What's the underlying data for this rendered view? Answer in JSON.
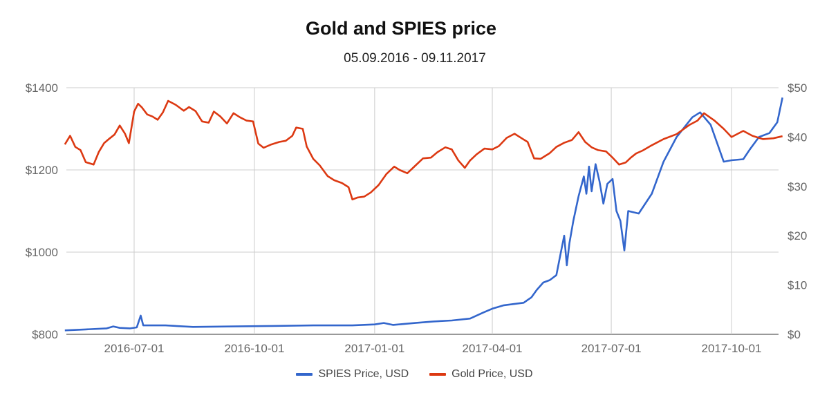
{
  "chart_data": {
    "type": "line",
    "title": "Gold and SPIES price",
    "subtitle": "05.09.2016 - 09.11.2017",
    "xlabel": "",
    "ylabel_left": "",
    "ylabel_right": "",
    "x_ticks": [
      "2016-07-01",
      "2016-10-01",
      "2017-01-01",
      "2017-04-01",
      "2017-07-01",
      "2017-10-01"
    ],
    "y_left_ticks": [
      "$800",
      "$1000",
      "$1200",
      "$1400"
    ],
    "y_left_lim": [
      800,
      1400
    ],
    "y_right_ticks": [
      "$0",
      "$10",
      "$20",
      "$30",
      "$40",
      "$50"
    ],
    "y_right_lim": [
      0,
      50
    ],
    "grid": true,
    "legend_position": "bottom",
    "series": [
      {
        "name": "SPIES Price, USD",
        "axis": "right",
        "color": "#3366cc",
        "points": [
          [
            "2016-05-09",
            0.8
          ],
          [
            "2016-05-25",
            1.0
          ],
          [
            "2016-06-10",
            1.2
          ],
          [
            "2016-06-15",
            1.6
          ],
          [
            "2016-06-20",
            1.3
          ],
          [
            "2016-06-28",
            1.2
          ],
          [
            "2016-07-03",
            1.4
          ],
          [
            "2016-07-06",
            3.8
          ],
          [
            "2016-07-08",
            1.8
          ],
          [
            "2016-07-25",
            1.8
          ],
          [
            "2016-08-15",
            1.5
          ],
          [
            "2016-09-15",
            1.6
          ],
          [
            "2016-10-15",
            1.7
          ],
          [
            "2016-11-15",
            1.8
          ],
          [
            "2016-12-15",
            1.8
          ],
          [
            "2017-01-01",
            2.0
          ],
          [
            "2017-01-08",
            2.3
          ],
          [
            "2017-01-15",
            1.9
          ],
          [
            "2017-02-01",
            2.3
          ],
          [
            "2017-02-15",
            2.6
          ],
          [
            "2017-03-01",
            2.8
          ],
          [
            "2017-03-15",
            3.2
          ],
          [
            "2017-03-25",
            4.4
          ],
          [
            "2017-04-01",
            5.2
          ],
          [
            "2017-04-10",
            5.9
          ],
          [
            "2017-04-25",
            6.4
          ],
          [
            "2017-05-01",
            7.5
          ],
          [
            "2017-05-05",
            9.0
          ],
          [
            "2017-05-10",
            10.5
          ],
          [
            "2017-05-15",
            11.0
          ],
          [
            "2017-05-20",
            12.0
          ],
          [
            "2017-05-23",
            16.0
          ],
          [
            "2017-05-26",
            20.0
          ],
          [
            "2017-05-28",
            14.0
          ],
          [
            "2017-05-30",
            18.5
          ],
          [
            "2017-06-02",
            23.0
          ],
          [
            "2017-06-06",
            28.0
          ],
          [
            "2017-06-10",
            32.0
          ],
          [
            "2017-06-12",
            28.5
          ],
          [
            "2017-06-14",
            34.0
          ],
          [
            "2017-06-16",
            29.0
          ],
          [
            "2017-06-19",
            34.5
          ],
          [
            "2017-06-22",
            31.0
          ],
          [
            "2017-06-25",
            26.5
          ],
          [
            "2017-06-28",
            30.5
          ],
          [
            "2017-07-02",
            31.5
          ],
          [
            "2017-07-05",
            25.0
          ],
          [
            "2017-07-08",
            23.0
          ],
          [
            "2017-07-11",
            17.0
          ],
          [
            "2017-07-14",
            25.0
          ],
          [
            "2017-07-22",
            24.5
          ],
          [
            "2017-08-01",
            28.5
          ],
          [
            "2017-08-10",
            35.0
          ],
          [
            "2017-08-20",
            40.0
          ],
          [
            "2017-09-01",
            44.0
          ],
          [
            "2017-09-07",
            45.0
          ],
          [
            "2017-09-15",
            42.5
          ],
          [
            "2017-09-25",
            35.0
          ],
          [
            "2017-10-01",
            35.3
          ],
          [
            "2017-10-10",
            35.5
          ],
          [
            "2017-10-15",
            37.5
          ],
          [
            "2017-10-22",
            40.0
          ],
          [
            "2017-10-30",
            40.8
          ],
          [
            "2017-11-05",
            43.0
          ],
          [
            "2017-11-09",
            48.0
          ]
        ]
      },
      {
        "name": "Gold Price, USD",
        "axis": "left",
        "color": "#dc3912",
        "points": [
          [
            "2016-05-09",
            1262
          ],
          [
            "2016-05-13",
            1283
          ],
          [
            "2016-05-17",
            1256
          ],
          [
            "2016-05-21",
            1248
          ],
          [
            "2016-05-25",
            1219
          ],
          [
            "2016-05-31",
            1213
          ],
          [
            "2016-06-04",
            1244
          ],
          [
            "2016-06-08",
            1265
          ],
          [
            "2016-06-12",
            1276
          ],
          [
            "2016-06-16",
            1286
          ],
          [
            "2016-06-20",
            1308
          ],
          [
            "2016-06-24",
            1288
          ],
          [
            "2016-06-27",
            1265
          ],
          [
            "2016-07-01",
            1342
          ],
          [
            "2016-07-04",
            1361
          ],
          [
            "2016-07-07",
            1352
          ],
          [
            "2016-07-11",
            1335
          ],
          [
            "2016-07-15",
            1330
          ],
          [
            "2016-07-19",
            1322
          ],
          [
            "2016-07-23",
            1340
          ],
          [
            "2016-07-27",
            1368
          ],
          [
            "2016-08-02",
            1358
          ],
          [
            "2016-08-08",
            1344
          ],
          [
            "2016-08-12",
            1353
          ],
          [
            "2016-08-17",
            1343
          ],
          [
            "2016-08-22",
            1318
          ],
          [
            "2016-08-27",
            1315
          ],
          [
            "2016-08-31",
            1342
          ],
          [
            "2016-09-05",
            1330
          ],
          [
            "2016-09-10",
            1313
          ],
          [
            "2016-09-15",
            1338
          ],
          [
            "2016-09-20",
            1328
          ],
          [
            "2016-09-25",
            1320
          ],
          [
            "2016-09-30",
            1318
          ],
          [
            "2016-10-04",
            1264
          ],
          [
            "2016-10-08",
            1254
          ],
          [
            "2016-10-14",
            1262
          ],
          [
            "2016-10-20",
            1268
          ],
          [
            "2016-10-25",
            1271
          ],
          [
            "2016-10-30",
            1283
          ],
          [
            "2016-11-02",
            1303
          ],
          [
            "2016-11-07",
            1300
          ],
          [
            "2016-11-10",
            1257
          ],
          [
            "2016-11-15",
            1227
          ],
          [
            "2016-11-20",
            1211
          ],
          [
            "2016-11-26",
            1185
          ],
          [
            "2016-12-01",
            1175
          ],
          [
            "2016-12-07",
            1168
          ],
          [
            "2016-12-12",
            1158
          ],
          [
            "2016-12-15",
            1128
          ],
          [
            "2016-12-19",
            1133
          ],
          [
            "2016-12-24",
            1135
          ],
          [
            "2016-12-29",
            1145
          ],
          [
            "2017-01-04",
            1163
          ],
          [
            "2017-01-10",
            1190
          ],
          [
            "2017-01-16",
            1208
          ],
          [
            "2017-01-20",
            1200
          ],
          [
            "2017-01-26",
            1192
          ],
          [
            "2017-02-01",
            1210
          ],
          [
            "2017-02-07",
            1228
          ],
          [
            "2017-02-13",
            1230
          ],
          [
            "2017-02-18",
            1243
          ],
          [
            "2017-02-24",
            1255
          ],
          [
            "2017-03-01",
            1250
          ],
          [
            "2017-03-06",
            1223
          ],
          [
            "2017-03-11",
            1205
          ],
          [
            "2017-03-15",
            1223
          ],
          [
            "2017-03-20",
            1238
          ],
          [
            "2017-03-26",
            1252
          ],
          [
            "2017-04-01",
            1250
          ],
          [
            "2017-04-06",
            1258
          ],
          [
            "2017-04-12",
            1278
          ],
          [
            "2017-04-18",
            1288
          ],
          [
            "2017-04-24",
            1276
          ],
          [
            "2017-04-28",
            1268
          ],
          [
            "2017-05-03",
            1228
          ],
          [
            "2017-05-08",
            1227
          ],
          [
            "2017-05-15",
            1241
          ],
          [
            "2017-05-20",
            1256
          ],
          [
            "2017-05-26",
            1266
          ],
          [
            "2017-06-01",
            1273
          ],
          [
            "2017-06-06",
            1292
          ],
          [
            "2017-06-11",
            1268
          ],
          [
            "2017-06-16",
            1255
          ],
          [
            "2017-06-21",
            1248
          ],
          [
            "2017-06-27",
            1245
          ],
          [
            "2017-07-02",
            1230
          ],
          [
            "2017-07-07",
            1213
          ],
          [
            "2017-07-12",
            1218
          ],
          [
            "2017-07-16",
            1230
          ],
          [
            "2017-07-20",
            1240
          ],
          [
            "2017-07-25",
            1247
          ],
          [
            "2017-08-01",
            1260
          ],
          [
            "2017-08-10",
            1275
          ],
          [
            "2017-08-20",
            1287
          ],
          [
            "2017-08-30",
            1310
          ],
          [
            "2017-09-05",
            1320
          ],
          [
            "2017-09-10",
            1338
          ],
          [
            "2017-09-18",
            1320
          ],
          [
            "2017-09-25",
            1300
          ],
          [
            "2017-10-01",
            1280
          ],
          [
            "2017-10-10",
            1295
          ],
          [
            "2017-10-17",
            1283
          ],
          [
            "2017-10-25",
            1275
          ],
          [
            "2017-11-02",
            1277
          ],
          [
            "2017-11-09",
            1282
          ]
        ]
      }
    ]
  }
}
